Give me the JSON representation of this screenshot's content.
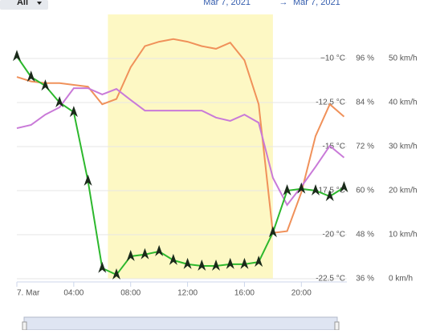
{
  "chart_data": {
    "type": "line",
    "header": {
      "button": "All",
      "date_from": "Mar 7, 2021",
      "arrow": "→",
      "date_to": "Mar 7, 2021"
    },
    "x": [
      0,
      1,
      2,
      3,
      4,
      5,
      6,
      7,
      8,
      9,
      10,
      11,
      12,
      13,
      14,
      15,
      16,
      17,
      18,
      19,
      20,
      21,
      22,
      23
    ],
    "xlim": [
      0,
      23.2
    ],
    "xticks": [
      {
        "value": 0,
        "label": "7. Mar"
      },
      {
        "value": 4,
        "label": "04:00"
      },
      {
        "value": 8,
        "label": "08:00"
      },
      {
        "value": 12,
        "label": "12:00"
      },
      {
        "value": 16,
        "label": "16:00"
      },
      {
        "value": 20,
        "label": "20:00"
      }
    ],
    "plot_band": {
      "from": 6.4,
      "to": 18,
      "color": "#fdf8c4"
    },
    "ylim": [
      -22.5,
      -7.5
    ],
    "yticks": [
      {
        "value": -10,
        "label": "−10 °C"
      },
      {
        "value": -12.5,
        "label": "-12.5 °C"
      },
      {
        "value": -15,
        "label": "-15 °C"
      },
      {
        "value": -17.5,
        "label": "-17.5 °C"
      },
      {
        "value": -20,
        "label": "-20 °C"
      },
      {
        "value": -22.5,
        "label": "-22.5 °C"
      }
    ],
    "y2lim": [
      36,
      108
    ],
    "y2ticks": [
      {
        "value": 96,
        "label": "96 %"
      },
      {
        "value": 84,
        "label": "84 %"
      },
      {
        "value": 72,
        "label": "72 %"
      },
      {
        "value": 60,
        "label": "60 %"
      },
      {
        "value": 48,
        "label": "48 %"
      },
      {
        "value": 36,
        "label": "36 %"
      }
    ],
    "y3lim": [
      0,
      60
    ],
    "y3ticks": [
      {
        "value": 50,
        "label": "50 km/h"
      },
      {
        "value": 40,
        "label": "40 km/h"
      },
      {
        "value": 30,
        "label": "30 km/h"
      },
      {
        "value": 20,
        "label": "20 km/h"
      },
      {
        "value": 10,
        "label": "10 km/h"
      },
      {
        "value": 0,
        "label": "0 km/h"
      }
    ],
    "grid": true,
    "series": [
      {
        "color": "#f0915a",
        "axis": "y",
        "values": [
          -11.05,
          -11.3,
          -11.4,
          -11.4,
          -11.5,
          -11.6,
          -12.6,
          -12.3,
          -10.5,
          -9.3,
          -9.05,
          -8.9,
          -9.05,
          -9.3,
          -9.45,
          -9.1,
          -10.1,
          -12.6,
          -19.9,
          -19.8,
          -17.6,
          -14.4,
          -12.6,
          -13.3
        ]
      },
      {
        "color": "#c97ad8",
        "axis": "y2",
        "values": [
          77.0,
          77.9,
          80.7,
          82.7,
          87.9,
          87.9,
          86.2,
          87.7,
          84.7,
          81.8,
          81.8,
          81.8,
          81.8,
          81.8,
          79.9,
          79.0,
          80.7,
          78.5,
          63.5,
          56.1,
          61.1,
          66.5,
          72.2,
          69.0
        ]
      },
      {
        "color": "#2db82d",
        "axis": "y3",
        "values": [
          50.5,
          45.8,
          43.8,
          40,
          37.8,
          22.2,
          2.4,
          0.9,
          5.1,
          5.5,
          6.2,
          4.2,
          3.3,
          2.9,
          2.9,
          3.3,
          3.3,
          3.8,
          10.5,
          20,
          20.4,
          20,
          18.7,
          20.7
        ]
      }
    ]
  }
}
